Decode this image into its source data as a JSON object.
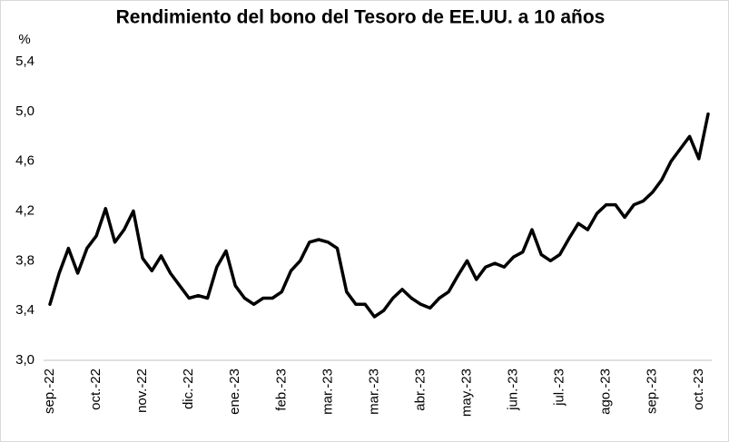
{
  "chart_data": {
    "type": "line",
    "title": "Rendimiento del bono del Tesoro de EE.UU. a 10 años",
    "y_label": "%",
    "color": "#000000",
    "grid": false,
    "categories": [
      "sep.-22",
      null,
      null,
      null,
      null,
      "oct.-22",
      null,
      null,
      null,
      null,
      "nov.-22",
      null,
      null,
      null,
      null,
      "dic.-22",
      null,
      null,
      null,
      null,
      "ene.-23",
      null,
      null,
      null,
      null,
      "feb.-23",
      null,
      null,
      null,
      null,
      "mar.-23",
      null,
      null,
      null,
      null,
      "mar.-23",
      null,
      null,
      null,
      null,
      "abr.-23",
      null,
      null,
      null,
      null,
      "may.-23",
      null,
      null,
      null,
      null,
      "jun.-23",
      null,
      null,
      null,
      null,
      "jul.-23",
      null,
      null,
      null,
      null,
      "ago.-23",
      null,
      null,
      null,
      null,
      "sep.-23",
      null,
      null,
      null,
      null,
      "oct.-23",
      null
    ],
    "values": [
      3.45,
      3.7,
      3.9,
      3.7,
      3.9,
      4.0,
      4.22,
      3.95,
      4.05,
      4.2,
      3.82,
      3.72,
      3.84,
      3.7,
      3.6,
      3.5,
      3.52,
      3.5,
      3.75,
      3.88,
      3.6,
      3.5,
      3.45,
      3.5,
      3.5,
      3.55,
      3.72,
      3.8,
      3.95,
      3.97,
      3.95,
      3.9,
      3.55,
      3.45,
      3.45,
      3.35,
      3.4,
      3.5,
      3.57,
      3.5,
      3.45,
      3.42,
      3.5,
      3.55,
      3.68,
      3.8,
      3.65,
      3.75,
      3.78,
      3.75,
      3.83,
      3.87,
      4.05,
      3.85,
      3.8,
      3.85,
      3.98,
      4.1,
      4.05,
      4.18,
      4.25,
      4.25,
      4.15,
      4.25,
      4.28,
      4.35,
      4.45,
      4.6,
      4.7,
      4.8,
      4.62,
      4.98
    ],
    "ylim": [
      3.0,
      5.4
    ],
    "yticks": [
      {
        "value": 3.0,
        "label": "3,0"
      },
      {
        "value": 3.4,
        "label": "3,4"
      },
      {
        "value": 3.8,
        "label": "3,8"
      },
      {
        "value": 4.2,
        "label": "4,2"
      },
      {
        "value": 4.6,
        "label": "4,6"
      },
      {
        "value": 5.0,
        "label": "5,0"
      },
      {
        "value": 5.4,
        "label": "5,4"
      }
    ]
  }
}
